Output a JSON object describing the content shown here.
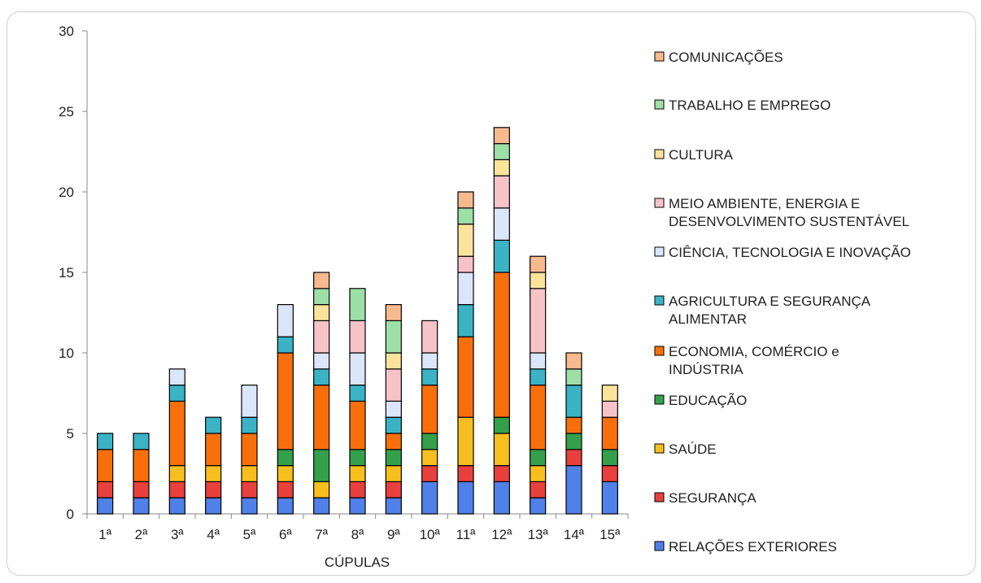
{
  "chart_data": {
    "type": "bar",
    "stacked": true,
    "xlabel": "CÚPULAS",
    "ylabel": "",
    "ylim": [
      0,
      30
    ],
    "yticks": [
      0,
      5,
      10,
      15,
      20,
      25,
      30
    ],
    "grid": false,
    "legend_position": "right",
    "categories": [
      "1ª",
      "2ª",
      "3ª",
      "4ª",
      "5ª",
      "6ª",
      "7ª",
      "8ª",
      "9ª",
      "10ª",
      "11ª",
      "12ª",
      "13ª",
      "14ª",
      "15ª"
    ],
    "series": [
      {
        "name": "RELAÇÕES EXTERIORES",
        "color": "#4f81e8",
        "values": [
          1,
          1,
          1,
          1,
          1,
          1,
          1,
          1,
          1,
          2,
          2,
          2,
          1,
          3,
          2
        ]
      },
      {
        "name": "SEGURANÇA",
        "color": "#e8403c",
        "values": [
          1,
          1,
          1,
          1,
          1,
          1,
          0,
          1,
          1,
          1,
          1,
          1,
          1,
          1,
          1
        ]
      },
      {
        "name": "SAÚDE",
        "color": "#f7bf1e",
        "values": [
          0,
          0,
          1,
          1,
          1,
          1,
          1,
          1,
          1,
          1,
          3,
          2,
          1,
          0,
          0
        ]
      },
      {
        "name": "EDUCAÇÃO",
        "color": "#35a04c",
        "values": [
          0,
          0,
          0,
          0,
          0,
          1,
          2,
          1,
          1,
          1,
          0,
          1,
          1,
          1,
          1
        ]
      },
      {
        "name": "ECONOMIA, COMÉRCIO e INDÚSTRIA",
        "color": "#f86f0c",
        "values": [
          2,
          2,
          4,
          2,
          2,
          6,
          4,
          3,
          1,
          3,
          5,
          9,
          4,
          1,
          2
        ]
      },
      {
        "name": "AGRICULTURA E SEGURANÇA ALIMENTAR",
        "color": "#3bb3c4",
        "values": [
          1,
          1,
          1,
          1,
          1,
          1,
          1,
          1,
          1,
          1,
          2,
          2,
          1,
          2,
          0
        ]
      },
      {
        "name": "CIÊNCIA, TECNOLOGIA E INOVAÇÃO",
        "color": "#dce6fa",
        "values": [
          0,
          0,
          1,
          0,
          2,
          2,
          1,
          2,
          1,
          1,
          2,
          2,
          1,
          0,
          0
        ]
      },
      {
        "name": "MEIO AMBIENTE, ENERGIA E DESENVOLVIMENTO SUSTENTÁVEL",
        "color": "#f6c3c9",
        "values": [
          0,
          0,
          0,
          0,
          0,
          0,
          2,
          2,
          2,
          2,
          1,
          2,
          4,
          0,
          1
        ]
      },
      {
        "name": "CULTURA",
        "color": "#fbe39c",
        "values": [
          0,
          0,
          0,
          0,
          0,
          0,
          1,
          0,
          1,
          0,
          2,
          1,
          1,
          0,
          1
        ]
      },
      {
        "name": "TRABALHO E EMPREGO",
        "color": "#9ddfa6",
        "values": [
          0,
          0,
          0,
          0,
          0,
          0,
          1,
          2,
          2,
          0,
          1,
          1,
          0,
          1,
          0
        ]
      },
      {
        "name": "COMUNICAÇÕES",
        "color": "#f7b98e",
        "values": [
          0,
          0,
          0,
          0,
          0,
          0,
          1,
          0,
          1,
          0,
          1,
          1,
          1,
          1,
          0
        ]
      }
    ],
    "legend_lines": [
      [
        "COMUNICAÇÕES"
      ],
      [
        "TRABALHO E EMPREGO"
      ],
      [
        "CULTURA"
      ],
      [
        "MEIO AMBIENTE, ENERGIA E",
        "DESENVOLVIMENTO SUSTENTÁVEL"
      ],
      [
        "CIÊNCIA, TECNOLOGIA E INOVAÇÃO"
      ],
      [
        "AGRICULTURA E SEGURANÇA",
        "ALIMENTAR"
      ],
      [
        "ECONOMIA, COMÉRCIO e",
        "INDÚSTRIA"
      ],
      [
        "EDUCAÇÃO"
      ],
      [
        "SAÚDE"
      ],
      [
        "SEGURANÇA"
      ],
      [
        "RELAÇÕES EXTERIORES"
      ]
    ]
  }
}
